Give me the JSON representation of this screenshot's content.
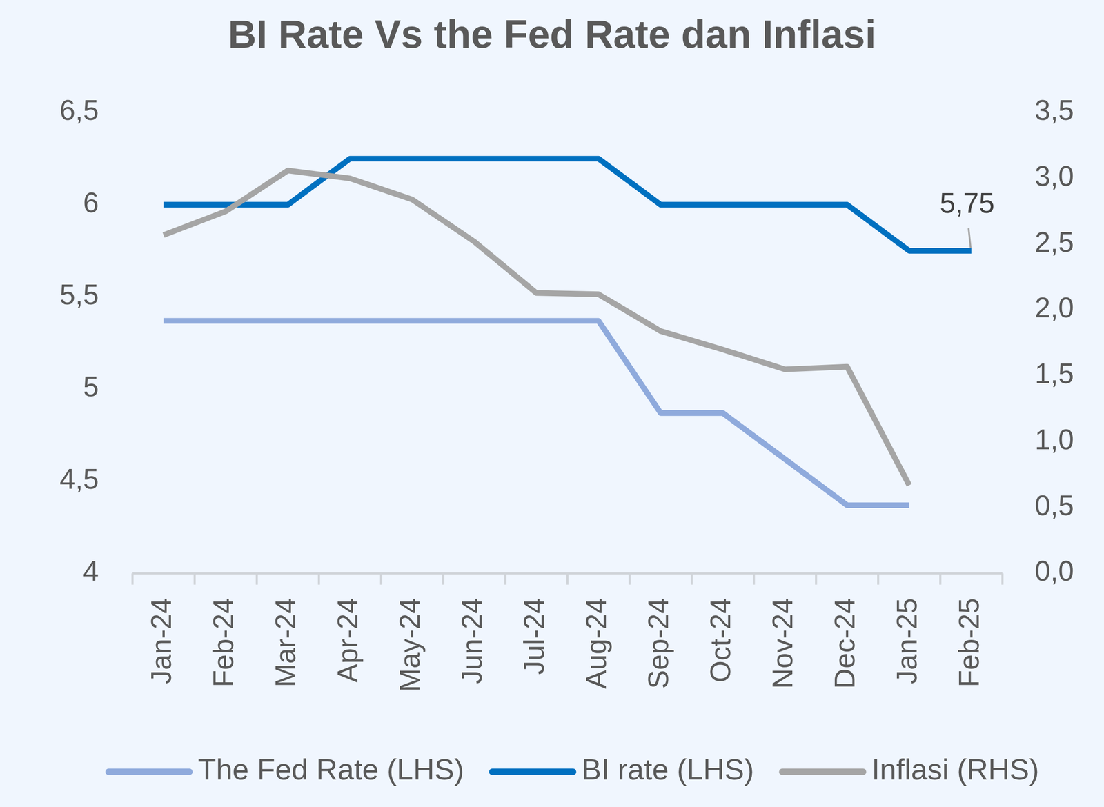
{
  "chart_data": {
    "type": "line",
    "title": "BI Rate Vs the Fed Rate dan Inflasi",
    "categories": [
      "Jan-24",
      "Feb-24",
      "Mar-24",
      "Apr-24",
      "May-24",
      "Jun-24",
      "Jul-24",
      "Aug-24",
      "Sep-24",
      "Oct-24",
      "Nov-24",
      "Dec-24",
      "Jan-25",
      "Feb-25"
    ],
    "series": [
      {
        "name": "The Fed Rate (LHS)",
        "color": "#8faadc",
        "values": [
          5.37,
          5.37,
          5.37,
          5.37,
          5.37,
          5.37,
          5.37,
          5.37,
          4.87,
          4.87,
          4.62,
          4.37,
          4.37,
          null
        ]
      },
      {
        "name": "BI rate (LHS)",
        "color": "#0070c0",
        "values": [
          6,
          6,
          6,
          6.25,
          6.25,
          6.25,
          6.25,
          6.25,
          6,
          6,
          6,
          6,
          5.75,
          5.75
        ],
        "value_labels": [
          null,
          null,
          null,
          null,
          null,
          null,
          null,
          null,
          null,
          null,
          null,
          null,
          null,
          "5,75"
        ]
      },
      {
        "name": "Inflasi (RHS)",
        "color": "#a5a5a5",
        "axis": "y2",
        "values": [
          2.57,
          2.75,
          3.06,
          3.0,
          2.84,
          2.52,
          2.13,
          2.12,
          1.84,
          1.7,
          1.55,
          1.57,
          0.67,
          null
        ]
      }
    ],
    "ylim": [
      4,
      6.5
    ],
    "yticks": [
      4,
      {
        "value": 4.5,
        "label": "4,5"
      },
      5,
      {
        "value": 5.5,
        "label": "5,5"
      },
      6,
      {
        "value": 6.5,
        "label": "6,5"
      }
    ],
    "y2lim": [
      0,
      3.5
    ],
    "y2ticks": [
      {
        "value": 0,
        "label": "0,0"
      },
      {
        "value": 0.5,
        "label": "0,5"
      },
      {
        "value": 1,
        "label": "1,0"
      },
      {
        "value": 1.5,
        "label": "1,5"
      },
      {
        "value": 2,
        "label": "2,0"
      },
      {
        "value": 2.5,
        "label": "2,5"
      },
      {
        "value": 3,
        "label": "3,0"
      },
      {
        "value": 3.5,
        "label": "3,5"
      }
    ],
    "grid": false,
    "legend": "bottom"
  }
}
